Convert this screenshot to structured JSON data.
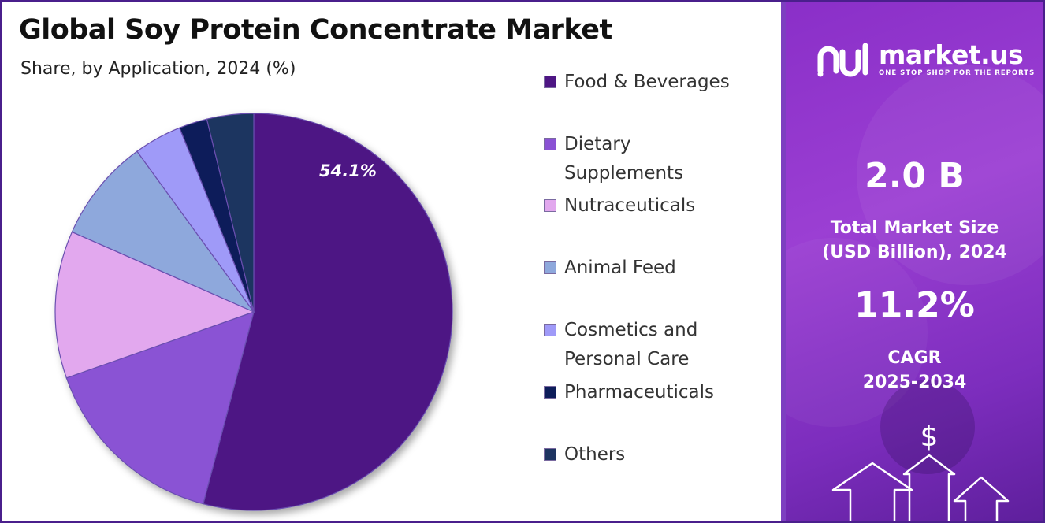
{
  "chart_data": {
    "type": "pie",
    "title": "Global Soy Protein Concentrate Market",
    "subtitle": "Share, by Application, 2024 (%)",
    "categories": [
      "Food & Beverages",
      "Dietary Supplements",
      "Nutraceuticals",
      "Animal Feed",
      "Cosmetics and Personal Care",
      "Pharmaceuticals",
      "Others"
    ],
    "values": [
      54.1,
      15.5,
      12.0,
      8.4,
      3.9,
      2.3,
      3.8
    ],
    "colors": [
      "#4e1684",
      "#8a52d4",
      "#e2a8ee",
      "#8ea8dc",
      "#9f9af8",
      "#0d1d5a",
      "#1e3461"
    ],
    "data_labels": [
      "54.1%",
      "",
      "",
      "",
      "",
      "",
      ""
    ],
    "legend_position": "right"
  },
  "legend": {
    "items": [
      {
        "lines": [
          "Food & Beverages"
        ]
      },
      {
        "lines": [
          "Dietary",
          "Supplements"
        ]
      },
      {
        "lines": [
          "Nutraceuticals"
        ]
      },
      {
        "lines": [
          "Animal Feed"
        ]
      },
      {
        "lines": [
          "Cosmetics and",
          "Personal Care"
        ]
      },
      {
        "lines": [
          "Pharmaceuticals"
        ]
      },
      {
        "lines": [
          "Others"
        ]
      }
    ]
  },
  "side_panel": {
    "brand_name": "market.us",
    "brand_tagline": "ONE STOP SHOP FOR THE REPORTS",
    "market_size_value": "2.0 B",
    "market_size_label": [
      "Total Market Size",
      "(USD Billion), 2024"
    ],
    "cagr_value": "11.2%",
    "cagr_label": [
      "CAGR",
      "2025-2034"
    ],
    "currency_symbol": "$",
    "accent_color": "#8a2fc8"
  }
}
